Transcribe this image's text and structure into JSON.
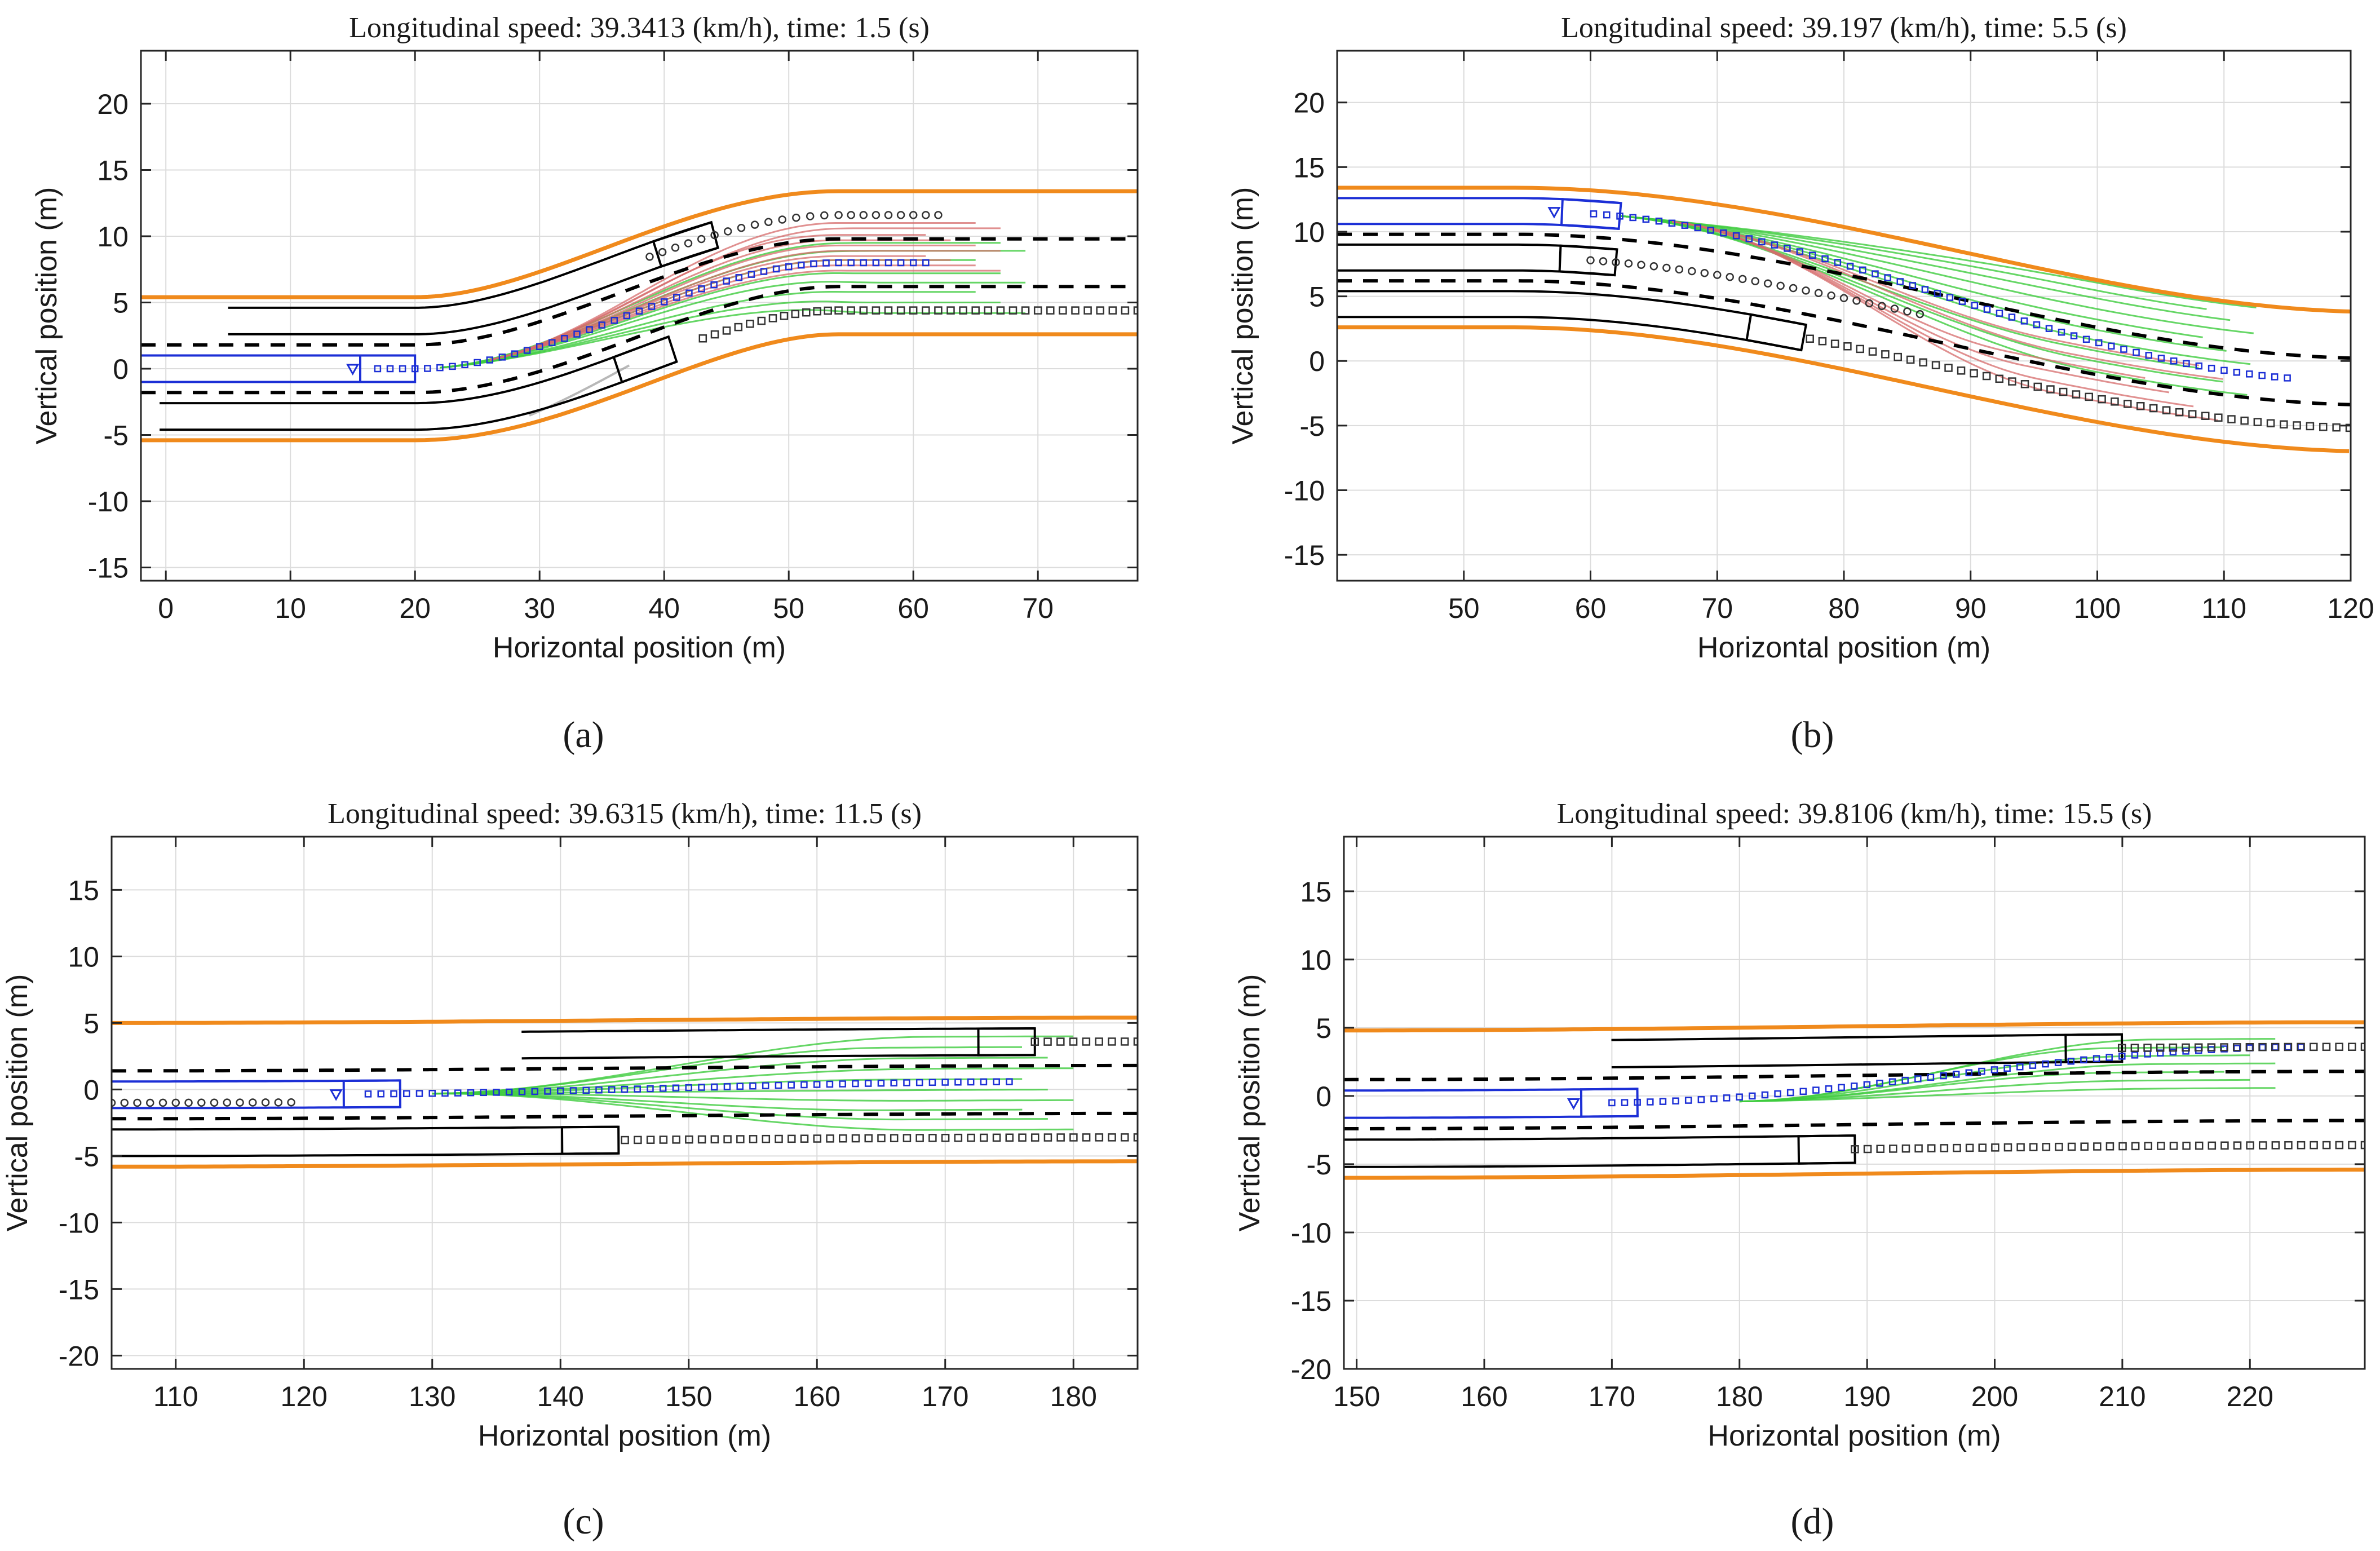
{
  "chart_data": [
    {
      "panel": "a",
      "caption": "(a)",
      "type": "line",
      "title": "Longitudinal speed: 39.3413 (km/h), time: 1.5 (s)",
      "xlabel": "Horizontal position (m)",
      "ylabel": "Vertical position (m)",
      "xlim": [
        -2,
        78
      ],
      "ylim": [
        -16,
        24
      ],
      "xticks": [
        0,
        10,
        20,
        30,
        40,
        50,
        60,
        70
      ],
      "yticks": [
        -15,
        -10,
        -5,
        0,
        5,
        10,
        15,
        20
      ],
      "grid": true,
      "colors": {
        "boundary": "#f08a1c",
        "lane": "#000000",
        "ego": "#1c2fd6",
        "safe": "#3fcc3f",
        "risky": "#d66b6b",
        "history": "#9a9a9a"
      },
      "road_center": {
        "type": "s-curve",
        "x0": 20,
        "x1": 54,
        "y0": 0,
        "y1": 8
      },
      "boundary_offsets": [
        -5.4,
        5.4
      ],
      "dashed_offsets": [
        -1.8,
        1.8
      ],
      "ego_vehicle": {
        "x": 20,
        "lane_offset": 0
      },
      "other_vehicles": [
        {
          "x": 39.5,
          "lane_offset": -3.6
        },
        {
          "x": 45,
          "lane_offset": 3.6
        }
      ],
      "predicted_paths": [
        {
          "name": "ego",
          "x_start": 17,
          "x_end": 61,
          "lane_offset": 0
        },
        {
          "name": "vehicle-upper",
          "x_start": 40,
          "x_end": 62,
          "lane_offset": 3.6,
          "marker": "circle"
        },
        {
          "name": "vehicle-lower",
          "x_start": 42,
          "x_end": 78,
          "lane_offset": -3.6,
          "marker": "square"
        }
      ],
      "candidate_spread": {
        "x_start": 22,
        "x_end": 69,
        "green_offsets": [
          -3.8,
          -3.0,
          -2.2,
          -1.5,
          -0.8,
          0.2,
          0.9,
          1.5
        ],
        "red_offsets": [
          -0.6,
          -0.2,
          0.2,
          0.5,
          0.9,
          1.3,
          1.7,
          2.1,
          2.6,
          3.0
        ]
      }
    },
    {
      "panel": "b",
      "caption": "(b)",
      "type": "line",
      "title": "Longitudinal speed: 39.197 (km/h), time: 5.5 (s)",
      "xlabel": "Horizontal position (m)",
      "ylabel": "Vertical position (m)",
      "xlim": [
        40,
        120
      ],
      "ylim": [
        -17,
        24
      ],
      "xticks": [
        50,
        60,
        70,
        80,
        90,
        100,
        110,
        120
      ],
      "yticks": [
        -15,
        -10,
        -5,
        0,
        5,
        10,
        15,
        20
      ],
      "grid": true,
      "colors": {
        "boundary": "#f08a1c",
        "lane": "#000000",
        "ego": "#1c2fd6",
        "safe": "#3fcc3f",
        "risky": "#d66b6b",
        "history": "#9a9a9a"
      },
      "road_center": {
        "type": "s-curve",
        "x0": 54,
        "x1": 122,
        "y0": 8,
        "y1": -1.6
      },
      "boundary_offsets": [
        -5.4,
        5.4
      ],
      "dashed_offsets": [
        -1.8,
        1.8
      ],
      "ego_vehicle": {
        "x": 62,
        "lane_offset": 3.6
      },
      "other_vehicles": [
        {
          "x": 62,
          "lane_offset": 0
        },
        {
          "x": 77.5,
          "lane_offset": -3.6
        }
      ],
      "predicted_paths": [
        {
          "name": "ego",
          "x_start": 60,
          "x_end": 115,
          "lane_offset": 3.6,
          "end_offset": 0
        },
        {
          "name": "vehicle-upper",
          "x_start": 60,
          "x_end": 86,
          "lane_offset": 0,
          "marker": "circle"
        },
        {
          "name": "vehicle-lower",
          "x_start": 78,
          "x_end": 120,
          "lane_offset": -3.6,
          "marker": "square"
        }
      ],
      "candidate_spread": {
        "x_start": 62,
        "x_end": 112,
        "green_offsets": [
          -1.6,
          -0.8,
          0.0,
          0.8,
          1.6,
          2.4,
          3.2,
          4.0,
          4.6,
          5.2
        ],
        "red_offsets": [
          -3.8,
          -3.0,
          -2.2,
          -1.4,
          -0.6,
          0.2
        ]
      }
    },
    {
      "panel": "c",
      "caption": "(c)",
      "type": "line",
      "title": "Longitudinal speed: 39.6315 (km/h), time: 11.5 (s)",
      "xlabel": "Horizontal position (m)",
      "ylabel": "Vertical position (m)",
      "xlim": [
        105,
        185
      ],
      "ylim": [
        -21,
        19
      ],
      "xticks": [
        110,
        120,
        130,
        140,
        150,
        160,
        170,
        180
      ],
      "yticks": [
        -20,
        -15,
        -10,
        -5,
        0,
        5,
        10,
        15
      ],
      "grid": true,
      "colors": {
        "boundary": "#f08a1c",
        "lane": "#000000",
        "ego": "#1c2fd6",
        "safe": "#3fcc3f",
        "risky": "#d66b6b",
        "history": "#9a9a9a"
      },
      "road_center": {
        "type": "gentle",
        "x0": 105,
        "x1": 185,
        "y0": -0.4,
        "y1": 0
      },
      "boundary_offsets": [
        -5.4,
        5.4
      ],
      "dashed_offsets": [
        -1.8,
        1.8
      ],
      "ego_vehicle": {
        "x": 127.5,
        "lane_offset": 0
      },
      "other_vehicles": [
        {
          "x": 177,
          "lane_offset": 3.6
        },
        {
          "x": 144.5,
          "lane_offset": -3.6
        }
      ],
      "predicted_paths": [
        {
          "name": "ego",
          "x_start": 125,
          "x_end": 175,
          "lane_offset": 0,
          "end_offset": 0.6
        },
        {
          "name": "vehicle-history",
          "x_start": 105,
          "x_end": 119,
          "lane_offset": -0.6,
          "marker": "circle"
        },
        {
          "name": "vehicle-upper",
          "x_start": 177,
          "x_end": 185,
          "lane_offset": 3.6,
          "marker": "square"
        },
        {
          "name": "vehicle-lower",
          "x_start": 145,
          "x_end": 185,
          "lane_offset": -3.6,
          "marker": "square"
        }
      ],
      "candidate_spread": {
        "x_start": 130,
        "x_end": 180,
        "green_offsets": [
          -3.0,
          -2.2,
          -1.5,
          -0.8,
          0.0,
          0.8,
          1.6,
          2.4,
          3.2,
          4.0
        ],
        "red_offsets": []
      }
    },
    {
      "panel": "d",
      "caption": "(d)",
      "type": "line",
      "title": "Longitudinal speed: 39.8106 (km/h), time: 15.5 (s)",
      "xlabel": "Horizontal position (m)",
      "ylabel": "Vertical position (m)",
      "xlim": [
        149,
        229
      ],
      "ylim": [
        -20,
        19
      ],
      "xticks": [
        150,
        160,
        170,
        180,
        190,
        200,
        210,
        220
      ],
      "yticks": [
        -20,
        -15,
        -10,
        -5,
        0,
        5,
        10,
        15
      ],
      "grid": true,
      "colors": {
        "boundary": "#f08a1c",
        "lane": "#000000",
        "ego": "#1c2fd6",
        "safe": "#3fcc3f",
        "risky": "#d66b6b",
        "history": "#9a9a9a"
      },
      "road_center": {
        "type": "gentle",
        "x0": 149,
        "x1": 229,
        "y0": -0.6,
        "y1": 0
      },
      "boundary_offsets": [
        -5.4,
        5.4
      ],
      "dashed_offsets": [
        -1.8,
        1.8
      ],
      "ego_vehicle": {
        "x": 172,
        "lane_offset": 0
      },
      "other_vehicles": [
        {
          "x": 210,
          "lane_offset": 3.6
        },
        {
          "x": 189,
          "lane_offset": -3.6
        }
      ],
      "predicted_paths": [
        {
          "name": "ego",
          "x_start": 170,
          "x_end": 224,
          "lane_offset": 0,
          "end_offset": 3.6
        },
        {
          "name": "vehicle-upper",
          "x_start": 210,
          "x_end": 229,
          "lane_offset": 3.6,
          "marker": "square"
        },
        {
          "name": "vehicle-lower",
          "x_start": 189,
          "x_end": 229,
          "lane_offset": -3.6,
          "marker": "square"
        }
      ],
      "candidate_spread": {
        "x_start": 180,
        "x_end": 222,
        "green_offsets": [
          0.6,
          1.2,
          1.8,
          2.4,
          3.0,
          3.6,
          4.2
        ],
        "red_offsets": []
      }
    }
  ]
}
